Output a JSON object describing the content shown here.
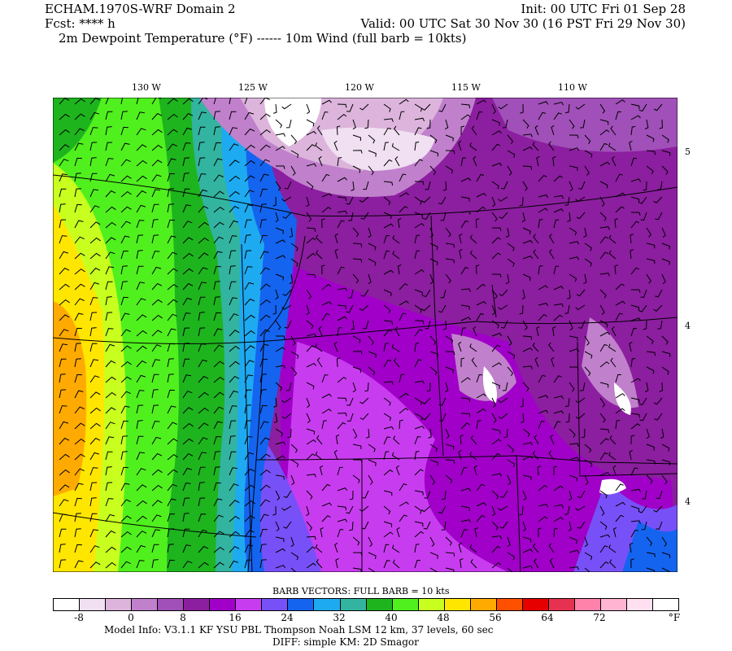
{
  "header": {
    "model": "ECHAM.1970S-WRF Domain 2",
    "init": "Init: 00 UTC Fri 01 Sep 28",
    "fcst": "Fcst: **** h",
    "valid": "Valid: 00 UTC Sat 30 Nov 30 (16 PST Fri 29 Nov 30)",
    "field": "2m Dewpoint Temperature (°F) ------ 10m Wind (full barb = 10kts)"
  },
  "map": {
    "lon_labels": [
      "130 W",
      "125 W",
      "120 W",
      "115 W",
      "110 W"
    ],
    "lat_labels": [
      "5",
      "4",
      "4"
    ]
  },
  "colorbar": {
    "title": "BARB VECTORS:  FULL BARB = 10 kts",
    "colors": [
      "#ffffff",
      "#f0e0f2",
      "#dcb4dc",
      "#c080cc",
      "#a050b8",
      "#8c1ea0",
      "#a000c8",
      "#c83cf0",
      "#7850f8",
      "#1464f0",
      "#1eaaf0",
      "#32b4a0",
      "#1eb41e",
      "#50f01e",
      "#c8ff1e",
      "#ffe600",
      "#ffaa00",
      "#ff5000",
      "#e60000",
      "#e63250",
      "#ff82aa",
      "#ffb4d2",
      "#ffe0f0",
      "#ffffff"
    ],
    "labels": [
      "-8",
      "0",
      "8",
      "16",
      "24",
      "32",
      "40",
      "48",
      "56",
      "64",
      "72"
    ],
    "unit": "°F"
  },
  "footer": {
    "line1": "Model Info: V3.1.1    KF      YSU PBL   Thompson     Noah LSM  12 km,    37 levels,    60 sec",
    "line2": "DIFF: simple KM: 2D Smagor"
  }
}
